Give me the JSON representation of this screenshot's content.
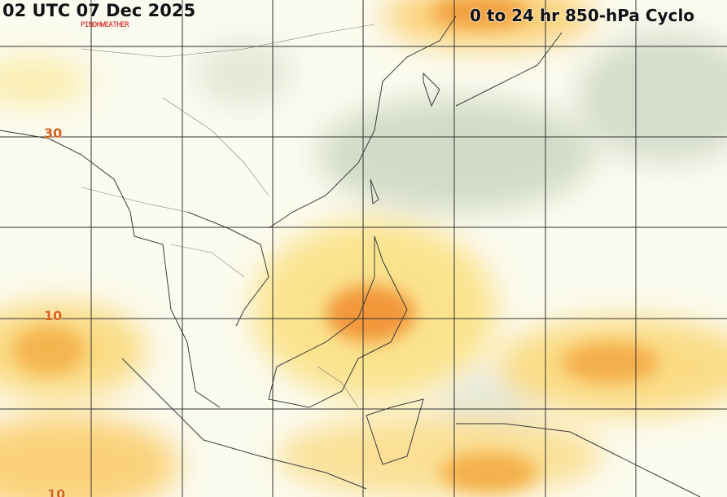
{
  "header": {
    "valid_time": "02 UTC 07 Dec 2025",
    "product_title": "0 to 24 hr 850-hPa Cyclo",
    "credit_logo": "PINOHWEATHER"
  },
  "latitude_labels": [
    "30",
    "10",
    "10"
  ],
  "colors": {
    "background": "#fbfbef",
    "light_yellow": "#fbf3b0",
    "yellow": "#fbd97a",
    "orange": "#f6b04a",
    "dark_orange": "#ef8a30",
    "green_gray": "#c9d3c0",
    "grid": "#333333",
    "coast": "#333333",
    "label": "#d9631a"
  }
}
